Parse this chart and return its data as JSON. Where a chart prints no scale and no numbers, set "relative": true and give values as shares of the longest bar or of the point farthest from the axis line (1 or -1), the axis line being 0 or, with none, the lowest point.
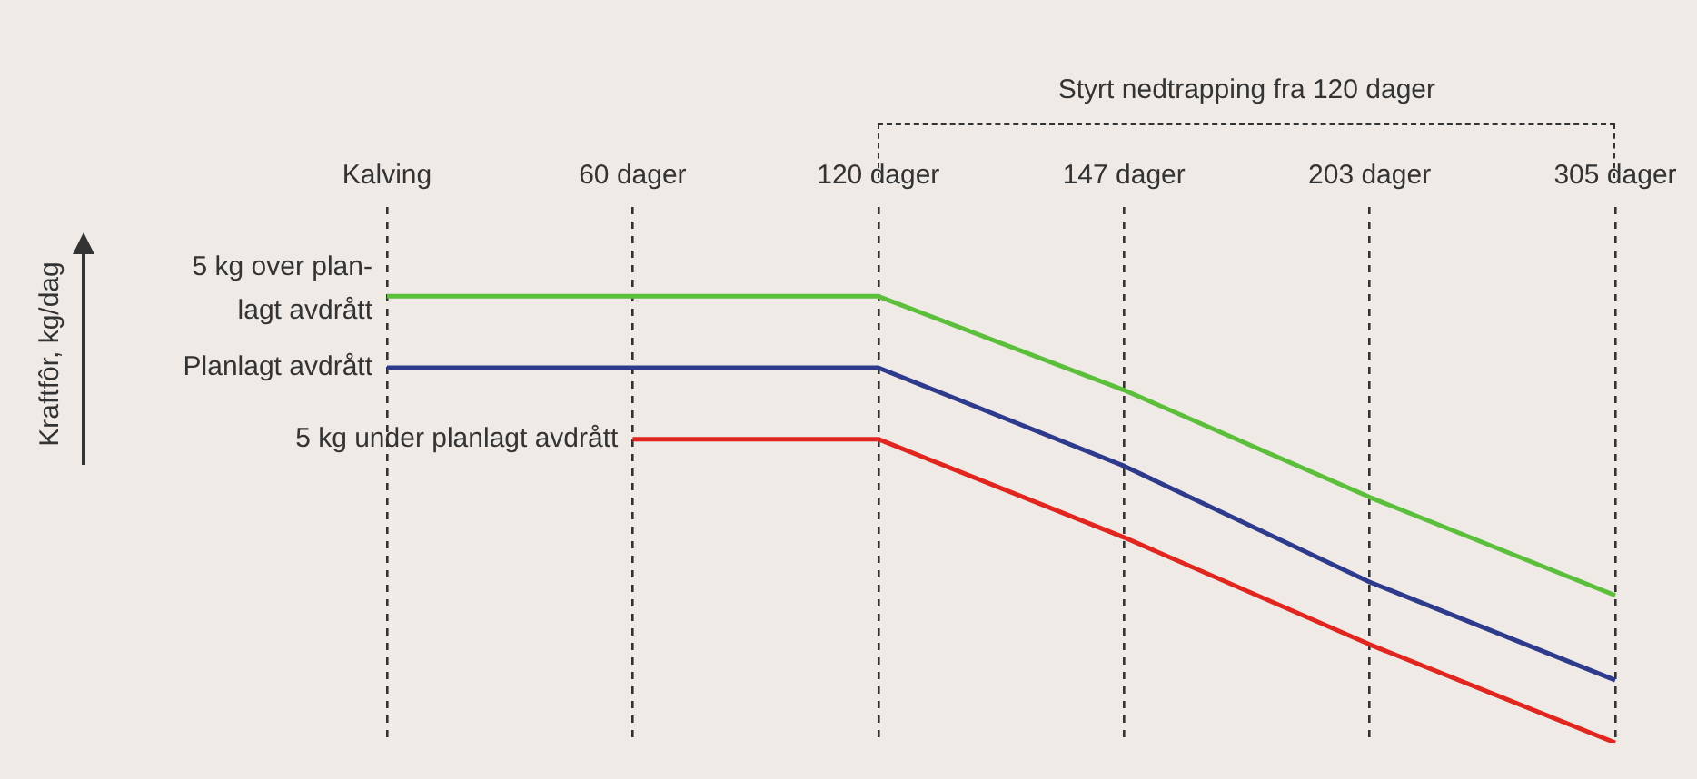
{
  "chart_data": {
    "type": "line",
    "relative": true,
    "annotations": [
      "Styrt nedtrapping fra 120 dager",
      "Kraftfôr, kg/dag"
    ],
    "categories": [
      "Kalving",
      "60 dager",
      "120 dager",
      "147 dager",
      "203 dager",
      "305 dager"
    ],
    "series": [
      {
        "name": "5 kg over plan-\nlagt avdrått",
        "color": "#5cbf3c",
        "values": [
          1,
          1,
          1,
          0.79,
          0.55,
          0.33
        ]
      },
      {
        "name": "Planlagt avdrått",
        "color": "#2e3a8c",
        "values": [
          0.84,
          0.84,
          0.84,
          0.62,
          0.36,
          0.14
        ]
      },
      {
        "name": "5 kg under planlagt avdrått",
        "color": "#e0261f",
        "values": [
          null,
          0.68,
          0.68,
          0.46,
          0.22,
          0
        ]
      }
    ],
    "grid": "x",
    "legend": false,
    "marker": "none",
    "line_style": "solid"
  }
}
